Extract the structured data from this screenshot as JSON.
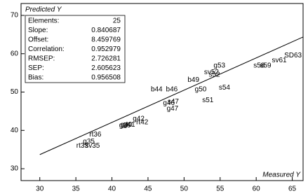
{
  "chart_data": {
    "type": "scatter",
    "x_label": "Measured Y",
    "y_label": "Predicted Y",
    "xlim": [
      27.4,
      66.5
    ],
    "ylim": [
      26.9,
      73.1
    ],
    "xticks": [
      30,
      35,
      40,
      45,
      50,
      55,
      60,
      65
    ],
    "yticks": [
      30,
      40,
      50,
      60,
      70
    ],
    "color": "#000000",
    "labels": [
      "SD63",
      "sv61",
      "s58",
      "s59",
      "g53",
      "sv52",
      "s52",
      "b49",
      "s54",
      "g50",
      "b44",
      "b46",
      "s51",
      "g46",
      "s47",
      "g47",
      "g42",
      "rt42",
      "g39",
      "g40",
      "g41",
      "rt36",
      "g35",
      "rt33",
      "sv35"
    ],
    "x": [
      65.1,
      63.2,
      60.4,
      61.3,
      54.9,
      53.8,
      54.2,
      51.3,
      55.6,
      52.3,
      46.2,
      48.3,
      53.3,
      47.9,
      48.5,
      48.4,
      43.7,
      44.2,
      41.8,
      42.0,
      42.4,
      37.7,
      36.8,
      35.9,
      37.3
    ],
    "values": [
      59.5,
      58.2,
      56.9,
      56.9,
      56.9,
      55.1,
      54.5,
      53.1,
      51.1,
      50.7,
      50.7,
      50.7,
      47.8,
      47.1,
      47.5,
      45.6,
      43.0,
      42.1,
      41.3,
      41.4,
      41.4,
      38.9,
      37.1,
      36.0,
      36.0
    ],
    "stats": [
      {
        "label": "Elements:",
        "value": 25
      },
      {
        "label": "Slope:",
        "value": 0.840687
      },
      {
        "label": "Offset:",
        "value": 8.459769
      },
      {
        "label": "Correlation:",
        "value": 0.952979
      },
      {
        "label": "RMSEP:",
        "value": 2.726281
      },
      {
        "label": "SEP:",
        "value": 2.605623
      },
      {
        "label": "Bias:",
        "value": 0.956508
      }
    ]
  }
}
